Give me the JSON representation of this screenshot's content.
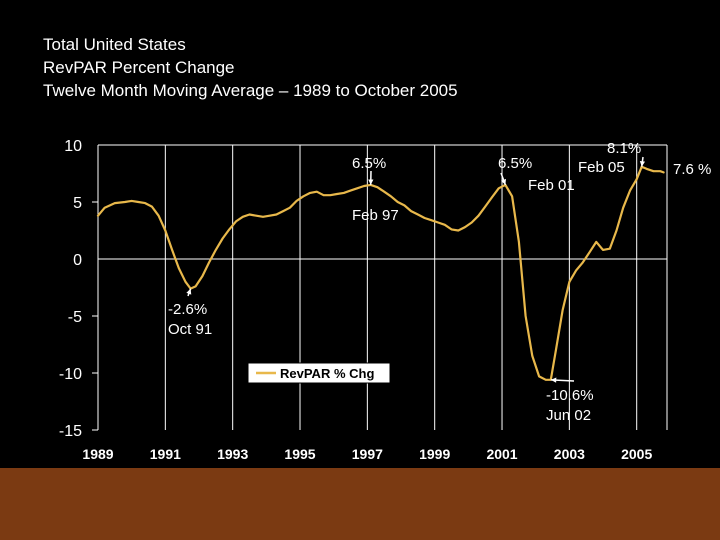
{
  "title_lines": [
    "Total United States",
    "RevPAR Percent Change",
    "Twelve Month Moving Average – 1989 to October 2005"
  ],
  "colors": {
    "background": "#000000",
    "line": "#E8B84B",
    "text": "#ffffff",
    "grid": "#ffffff",
    "footer": "#7B3A12"
  },
  "chart_data": {
    "type": "line",
    "title": "Total United States RevPAR Percent Change Twelve Month Moving Average – 1989 to October 2005",
    "xlabel": "",
    "ylabel": "",
    "xlim": [
      1989,
      2005.9
    ],
    "ylim": [
      -15,
      10
    ],
    "yticks": [
      10,
      5,
      0,
      -5,
      -10,
      -15
    ],
    "xticks": [
      "1989",
      "1991",
      "1993",
      "1995",
      "1997",
      "1999",
      "2001",
      "2003",
      "2005"
    ],
    "grid": true,
    "legend": {
      "label": "RevPAR % Chg",
      "position": "center-bottom"
    },
    "series": [
      {
        "name": "RevPAR % Chg",
        "x": [
          1989.0,
          1989.2,
          1989.5,
          1989.8,
          1990.0,
          1990.2,
          1990.4,
          1990.6,
          1990.8,
          1991.0,
          1991.2,
          1991.4,
          1991.6,
          1991.75,
          1991.9,
          1992.1,
          1992.3,
          1992.5,
          1992.7,
          1992.9,
          1993.1,
          1993.3,
          1993.5,
          1993.7,
          1993.9,
          1994.1,
          1994.3,
          1994.5,
          1994.7,
          1994.9,
          1995.1,
          1995.3,
          1995.5,
          1995.7,
          1995.9,
          1996.1,
          1996.3,
          1996.5,
          1996.7,
          1996.9,
          1997.1,
          1997.3,
          1997.5,
          1997.7,
          1997.9,
          1998.1,
          1998.3,
          1998.5,
          1998.7,
          1998.9,
          1999.1,
          1999.3,
          1999.5,
          1999.7,
          1999.9,
          2000.1,
          2000.3,
          2000.5,
          2000.7,
          2000.9,
          2001.1,
          2001.3,
          2001.5,
          2001.7,
          2001.9,
          2002.1,
          2002.3,
          2002.45,
          2002.6,
          2002.8,
          2003.0,
          2003.2,
          2003.4,
          2003.6,
          2003.8,
          2004.0,
          2004.2,
          2004.4,
          2004.6,
          2004.8,
          2005.0,
          2005.15,
          2005.3,
          2005.5,
          2005.7,
          2005.8
        ],
        "values": [
          3.8,
          4.5,
          4.9,
          5.0,
          5.1,
          5.0,
          4.9,
          4.6,
          3.8,
          2.5,
          0.8,
          -0.8,
          -2.0,
          -2.6,
          -2.4,
          -1.5,
          -0.3,
          0.8,
          1.8,
          2.6,
          3.3,
          3.7,
          3.9,
          3.8,
          3.7,
          3.8,
          3.9,
          4.2,
          4.5,
          5.1,
          5.5,
          5.8,
          5.9,
          5.6,
          5.6,
          5.7,
          5.8,
          6.0,
          6.2,
          6.4,
          6.5,
          6.3,
          5.9,
          5.5,
          5.0,
          4.7,
          4.2,
          3.9,
          3.6,
          3.4,
          3.2,
          3.0,
          2.6,
          2.5,
          2.8,
          3.2,
          3.8,
          4.6,
          5.4,
          6.2,
          6.5,
          5.5,
          1.5,
          -5.0,
          -8.5,
          -10.3,
          -10.6,
          -10.6,
          -8.0,
          -4.5,
          -2.0,
          -1.0,
          -0.3,
          0.6,
          1.5,
          0.8,
          0.9,
          2.5,
          4.5,
          6.0,
          7.0,
          8.1,
          7.9,
          7.7,
          7.7,
          7.6
        ]
      }
    ],
    "annotations": [
      {
        "id": "oct91",
        "lines": [
          "-2.6%",
          "Oct 91"
        ],
        "x": 1991.75,
        "y": -2.6
      },
      {
        "id": "feb97",
        "lines": [
          "6.5%",
          "Feb 97"
        ],
        "x": 1997.1,
        "y": 6.5
      },
      {
        "id": "feb01",
        "lines": [
          "6.5%",
          "Feb 01"
        ],
        "x": 2001.1,
        "y": 6.5
      },
      {
        "id": "jun02",
        "lines": [
          "-10.6%",
          "Jun 02"
        ],
        "x": 2002.45,
        "y": -10.6
      },
      {
        "id": "feb05",
        "lines": [
          "8.1%",
          "Feb 05"
        ],
        "x": 2005.15,
        "y": 8.1
      },
      {
        "id": "oct05",
        "lines": [
          "7.6 %"
        ],
        "x": 2005.8,
        "y": 7.6
      }
    ]
  }
}
